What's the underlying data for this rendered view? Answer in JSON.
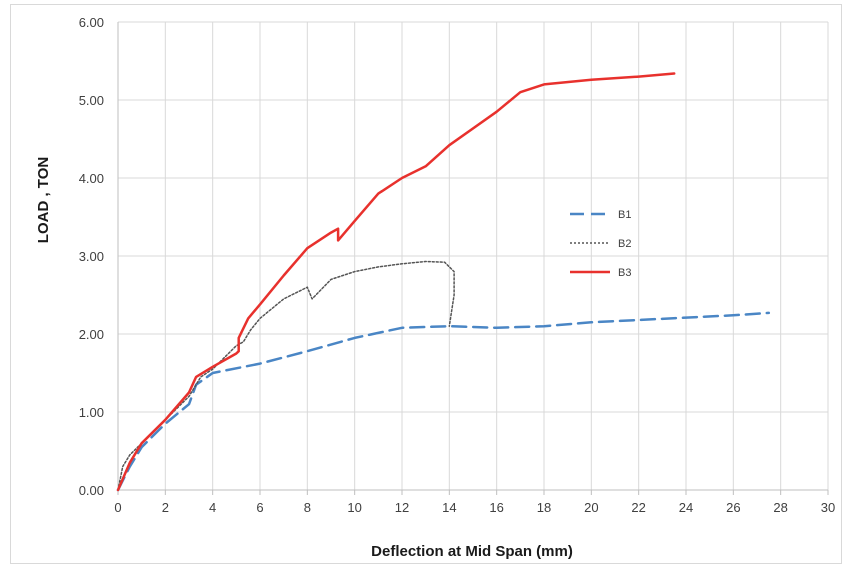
{
  "chart_data": {
    "type": "line",
    "title": "",
    "xlabel": "Deflection at Mid Span (mm)",
    "ylabel": "LOAD , TON",
    "xlim": [
      0,
      30
    ],
    "ylim": [
      0,
      6
    ],
    "x_ticks": [
      "0",
      "2",
      "4",
      "6",
      "8",
      "10",
      "12",
      "14",
      "16",
      "18",
      "20",
      "22",
      "24",
      "26",
      "28",
      "30"
    ],
    "y_ticks": [
      "0.00",
      "1.00",
      "2.00",
      "3.00",
      "4.00",
      "5.00",
      "6.00"
    ],
    "grid": true,
    "legend_position": "right",
    "series": [
      {
        "name": "B1",
        "color": "#4a86c5",
        "style": "dashed",
        "points": [
          [
            0,
            0
          ],
          [
            0.5,
            0.3
          ],
          [
            1,
            0.55
          ],
          [
            2,
            0.85
          ],
          [
            3,
            1.1
          ],
          [
            3.3,
            1.35
          ],
          [
            4,
            1.5
          ],
          [
            6,
            1.62
          ],
          [
            8,
            1.78
          ],
          [
            10,
            1.95
          ],
          [
            12,
            2.08
          ],
          [
            14,
            2.1
          ],
          [
            16,
            2.08
          ],
          [
            18,
            2.1
          ],
          [
            20,
            2.15
          ],
          [
            22,
            2.18
          ],
          [
            24,
            2.21
          ],
          [
            26,
            2.24
          ],
          [
            27.5,
            2.27
          ]
        ]
      },
      {
        "name": "B2",
        "color": "#555555",
        "style": "dotted",
        "points": [
          [
            0,
            0
          ],
          [
            0.2,
            0.3
          ],
          [
            0.5,
            0.45
          ],
          [
            1,
            0.6
          ],
          [
            2,
            0.9
          ],
          [
            3,
            1.2
          ],
          [
            3.5,
            1.45
          ],
          [
            4,
            1.55
          ],
          [
            4.5,
            1.7
          ],
          [
            5,
            1.85
          ],
          [
            5.3,
            1.9
          ],
          [
            5.6,
            2.05
          ],
          [
            6,
            2.2
          ],
          [
            7,
            2.45
          ],
          [
            8,
            2.6
          ],
          [
            8.2,
            2.45
          ],
          [
            9,
            2.7
          ],
          [
            10,
            2.8
          ],
          [
            11,
            2.86
          ],
          [
            12,
            2.9
          ],
          [
            13,
            2.93
          ],
          [
            13.8,
            2.92
          ],
          [
            14.2,
            2.8
          ],
          [
            14.2,
            2.5
          ],
          [
            14,
            2.1
          ]
        ]
      },
      {
        "name": "B3",
        "color": "#e8312d",
        "style": "solid",
        "points": [
          [
            0,
            0
          ],
          [
            0.5,
            0.35
          ],
          [
            1,
            0.6
          ],
          [
            2,
            0.9
          ],
          [
            3,
            1.25
          ],
          [
            3.3,
            1.45
          ],
          [
            4,
            1.58
          ],
          [
            5,
            1.75
          ],
          [
            5.1,
            1.78
          ],
          [
            5.1,
            1.95
          ],
          [
            5.5,
            2.2
          ],
          [
            6,
            2.38
          ],
          [
            7,
            2.75
          ],
          [
            8,
            3.1
          ],
          [
            9,
            3.3
          ],
          [
            9.3,
            3.35
          ],
          [
            9.3,
            3.2
          ],
          [
            10,
            3.45
          ],
          [
            11,
            3.8
          ],
          [
            12,
            4.0
          ],
          [
            13,
            4.15
          ],
          [
            14,
            4.42
          ],
          [
            16,
            4.85
          ],
          [
            17,
            5.1
          ],
          [
            18,
            5.2
          ],
          [
            20,
            5.26
          ],
          [
            22,
            5.3
          ],
          [
            23.5,
            5.34
          ]
        ]
      }
    ]
  }
}
